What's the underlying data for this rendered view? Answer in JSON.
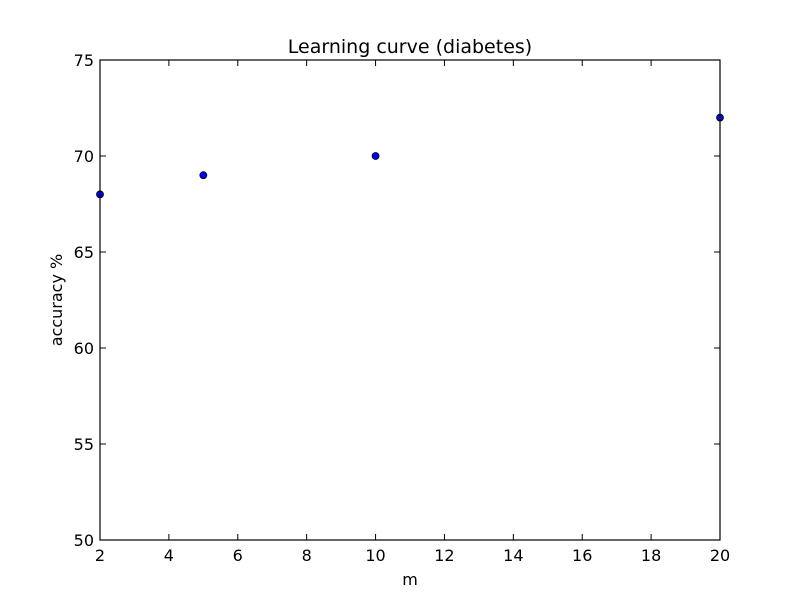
{
  "chart_data": {
    "type": "scatter",
    "title": "Learning curve (diabetes)",
    "xlabel": "m",
    "ylabel": "accuracy %",
    "x": [
      2,
      5,
      10,
      20
    ],
    "y": [
      68,
      69,
      70,
      72
    ],
    "xlim": [
      2,
      20
    ],
    "ylim": [
      50,
      75
    ],
    "xticks": [
      2,
      4,
      6,
      8,
      10,
      12,
      14,
      16,
      18,
      20
    ],
    "yticks": [
      50,
      55,
      60,
      65,
      70,
      75
    ],
    "grid": false,
    "marker_color": "#0000ff"
  }
}
